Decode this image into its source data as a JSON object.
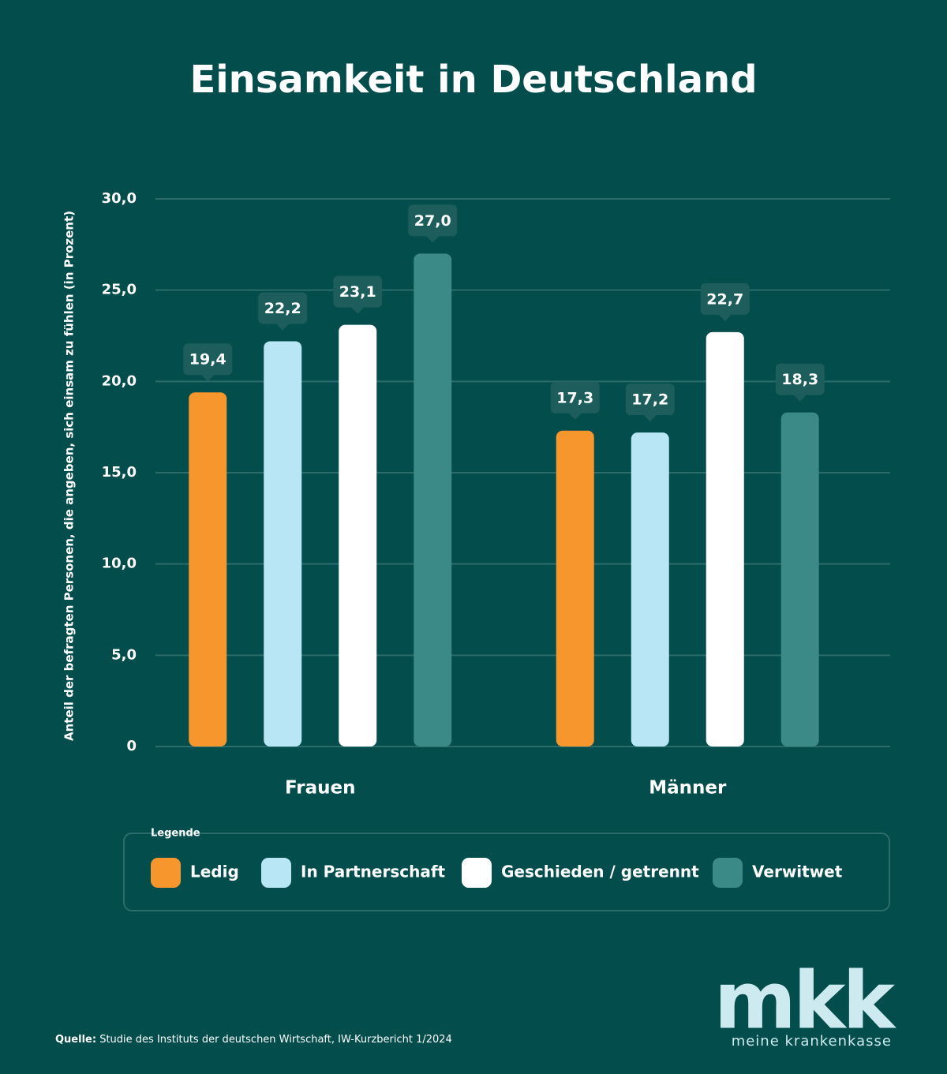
{
  "chart_data": {
    "type": "bar",
    "title": "Einsamkeit in Deutschland",
    "y_label": "Anteil der befragten Personen, die angeben, sich einsam zu fühlen (in Prozent)",
    "categories": [
      "Frauen",
      "Männer"
    ],
    "series": [
      {
        "name": "Ledig",
        "color": "#f7962d",
        "values": [
          19.4,
          17.3
        ],
        "value_labels": [
          "19,4",
          "17,3"
        ]
      },
      {
        "name": "In Partnerschaft",
        "color": "#b9e6f5",
        "values": [
          22.2,
          17.2
        ],
        "value_labels": [
          "22,2",
          "17,2"
        ]
      },
      {
        "name": "Geschieden / getrennt",
        "color": "#ffffff",
        "values": [
          23.1,
          22.7
        ],
        "value_labels": [
          "23,1",
          "22,7"
        ]
      },
      {
        "name": "Verwitwet",
        "color": "#3b8a87",
        "values": [
          27.0,
          18.3
        ],
        "value_labels": [
          "27,0",
          "18,3"
        ]
      }
    ],
    "ylim": [
      0,
      30
    ],
    "yticks": [
      0,
      {
        "value": 5,
        "label": "5,0"
      },
      {
        "value": 10,
        "label": "10,0"
      },
      {
        "value": 15,
        "label": "15,0"
      },
      {
        "value": 20,
        "label": "20,0"
      },
      {
        "value": 25,
        "label": "25,0"
      },
      {
        "value": 30,
        "label": "30,0"
      }
    ],
    "grid": true,
    "legend_title": "Legende",
    "legend_position": "bottom"
  },
  "footer": {
    "source_label": "Quelle:",
    "source_text": "Studie des Instituts der deutschen Wirtschaft, IW-Kurzbericht 1/2024",
    "logo": "mkk",
    "logo_tagline": "meine krankenkasse"
  }
}
